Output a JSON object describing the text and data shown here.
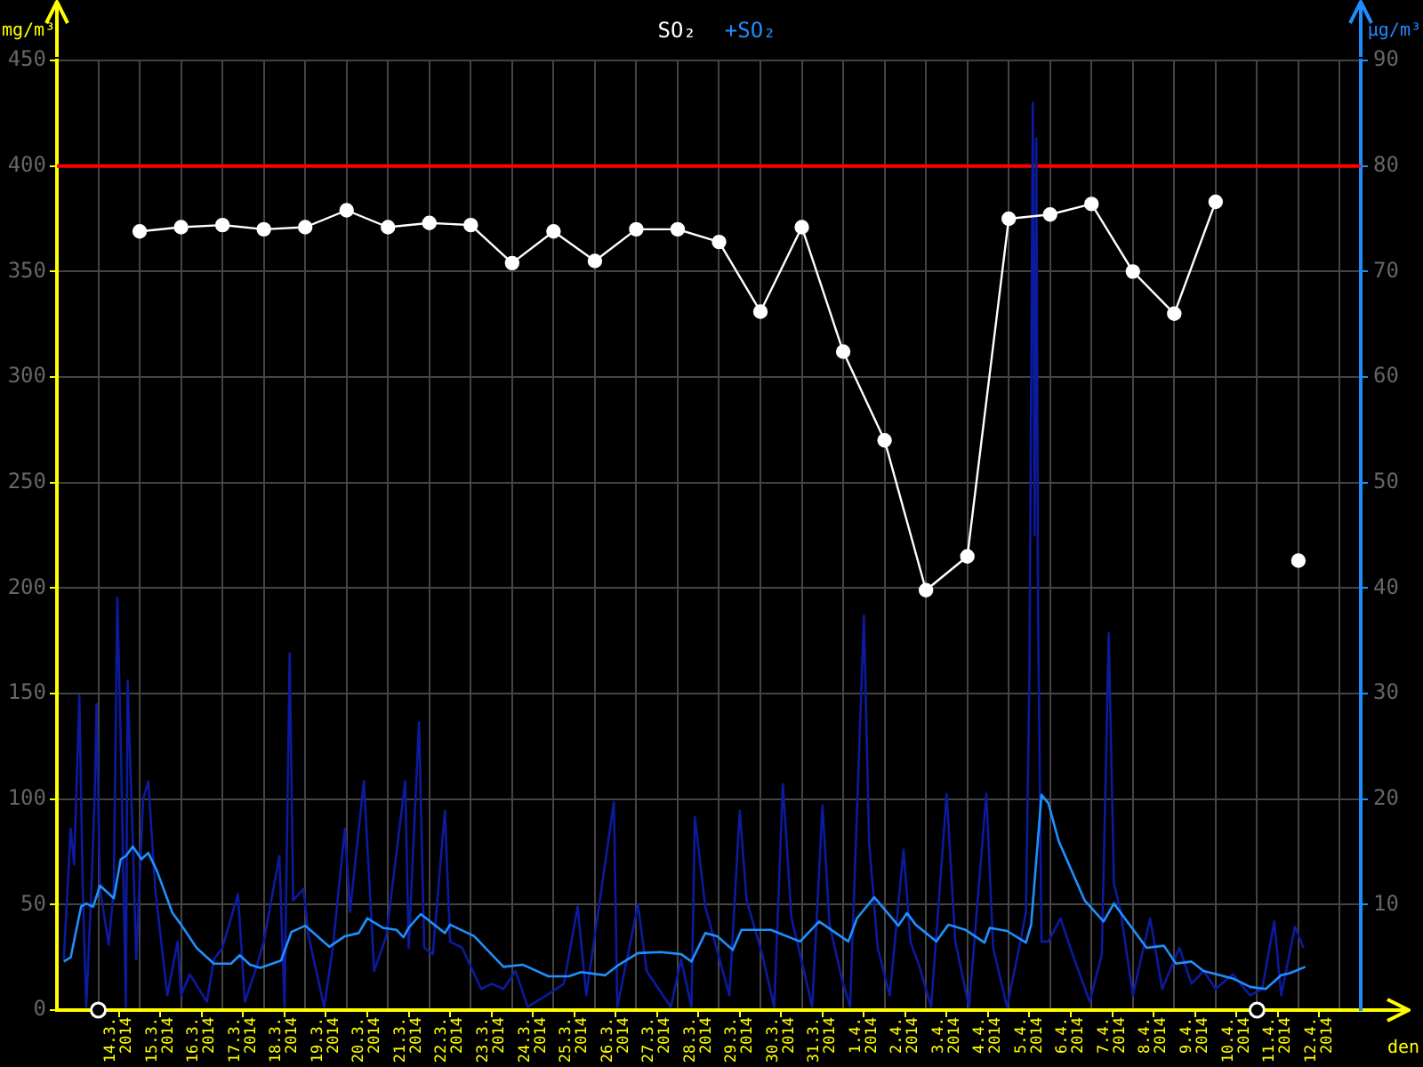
{
  "chart_data": {
    "type": "line",
    "xlabel": "den",
    "ylabel": "mg/m³",
    "y2label": "µg/m³",
    "legend": "top",
    "grid": true,
    "xlim": [
      "2014-03-13",
      "2014-04-14T16:00"
    ],
    "xticks": [
      {
        "value": "2014-03-14",
        "label": null
      },
      {
        "value": "2014-03-14T12:00",
        "label": "14.3. 2014"
      },
      {
        "value": "2014-03-15",
        "label": null
      },
      {
        "value": "2014-03-15T12:00",
        "label": "15.3. 2014"
      },
      {
        "value": "2014-03-16",
        "label": null
      },
      {
        "value": "2014-03-16T12:00",
        "label": "16.3. 2014"
      },
      {
        "value": "2014-03-17",
        "label": null
      },
      {
        "value": "2014-03-17T12:00",
        "label": "17.3. 2014"
      },
      {
        "value": "2014-03-18",
        "label": null
      },
      {
        "value": "2014-03-18T12:00",
        "label": "18.3. 2014"
      },
      {
        "value": "2014-03-19",
        "label": null
      },
      {
        "value": "2014-03-19T12:00",
        "label": "19.3. 2014"
      },
      {
        "value": "2014-03-20",
        "label": null
      },
      {
        "value": "2014-03-20T12:00",
        "label": "20.3. 2014"
      },
      {
        "value": "2014-03-21",
        "label": null
      },
      {
        "value": "2014-03-21T12:00",
        "label": "21.3. 2014"
      },
      {
        "value": "2014-03-22",
        "label": null
      },
      {
        "value": "2014-03-22T12:00",
        "label": "22.3. 2014"
      },
      {
        "value": "2014-03-23",
        "label": null
      },
      {
        "value": "2014-03-23T12:00",
        "label": "23.3. 2014"
      },
      {
        "value": "2014-03-24",
        "label": null
      },
      {
        "value": "2014-03-24T12:00",
        "label": "24.3. 2014"
      },
      {
        "value": "2014-03-25",
        "label": null
      },
      {
        "value": "2014-03-25T12:00",
        "label": "25.3. 2014"
      },
      {
        "value": "2014-03-26",
        "label": null
      },
      {
        "value": "2014-03-26T12:00",
        "label": "26.3. 2014"
      },
      {
        "value": "2014-03-27",
        "label": null
      },
      {
        "value": "2014-03-27T12:00",
        "label": "27.3. 2014"
      },
      {
        "value": "2014-03-28",
        "label": null
      },
      {
        "value": "2014-03-28T12:00",
        "label": "28.3. 2014"
      },
      {
        "value": "2014-03-29",
        "label": null
      },
      {
        "value": "2014-03-29T12:00",
        "label": "29.3. 2014"
      },
      {
        "value": "2014-03-30",
        "label": null
      },
      {
        "value": "2014-03-30T12:00",
        "label": "30.3. 2014"
      },
      {
        "value": "2014-03-31",
        "label": null
      },
      {
        "value": "2014-03-31T12:00",
        "label": "31.3. 2014"
      },
      {
        "value": "2014-04-01",
        "label": null
      },
      {
        "value": "2014-04-01T12:00",
        "label": "1.4. 2014"
      },
      {
        "value": "2014-04-02",
        "label": null
      },
      {
        "value": "2014-04-02T12:00",
        "label": "2.4. 2014"
      },
      {
        "value": "2014-04-03",
        "label": null
      },
      {
        "value": "2014-04-03T12:00",
        "label": "3.4. 2014"
      },
      {
        "value": "2014-04-04",
        "label": null
      },
      {
        "value": "2014-04-04T12:00",
        "label": "4.4. 2014"
      },
      {
        "value": "2014-04-05",
        "label": null
      },
      {
        "value": "2014-04-05T12:00",
        "label": "5.4. 2014"
      },
      {
        "value": "2014-04-06",
        "label": null
      },
      {
        "value": "2014-04-06T12:00",
        "label": "6.4. 2014"
      },
      {
        "value": "2014-04-07",
        "label": null
      },
      {
        "value": "2014-04-07T12:00",
        "label": "7.4. 2014"
      },
      {
        "value": "2014-04-08",
        "label": null
      },
      {
        "value": "2014-04-08T12:00",
        "label": "8.4. 2014"
      },
      {
        "value": "2014-04-09",
        "label": null
      },
      {
        "value": "2014-04-09T12:00",
        "label": "9.4. 2014"
      },
      {
        "value": "2014-04-10",
        "label": null
      },
      {
        "value": "2014-04-10T12:00",
        "label": "10.4. 2014"
      },
      {
        "value": "2014-04-11",
        "label": null
      },
      {
        "value": "2014-04-11T12:00",
        "label": "11.4. 2014"
      },
      {
        "value": "2014-04-12",
        "label": null
      },
      {
        "value": "2014-04-12T12:00",
        "label": "12.4. 2014"
      },
      {
        "value": "2014-04-13",
        "label": null
      }
    ],
    "ylim": [
      0,
      450
    ],
    "yticks": [
      0,
      50,
      100,
      150,
      200,
      250,
      300,
      350,
      400,
      450
    ],
    "y2lim": [
      0,
      90
    ],
    "y2ticks": [
      10,
      20,
      30,
      40,
      50,
      60,
      70,
      80,
      90
    ],
    "ref_lines": [
      {
        "axis": "y",
        "value": 400,
        "color": "#ff0000"
      }
    ],
    "series": [
      {
        "name": "SO₂",
        "color": "#ffffff",
        "marker": "circle",
        "x": [
          "2014-03-15",
          "2014-03-16",
          "2014-03-17",
          "2014-03-18",
          "2014-03-19",
          "2014-03-20",
          "2014-03-21",
          "2014-03-22",
          "2014-03-23",
          "2014-03-24",
          "2014-03-25",
          "2014-03-26",
          "2014-03-27",
          "2014-03-28",
          "2014-03-29",
          "2014-03-30",
          "2014-03-31",
          "2014-04-01",
          "2014-04-02",
          "2014-04-03",
          "2014-04-04",
          "2014-04-05",
          "2014-04-06",
          "2014-04-07",
          "2014-04-08",
          "2014-04-09",
          "2014-04-10",
          "2014-04-11",
          "2014-04-12"
        ],
        "values": [
          369,
          371,
          372,
          370,
          371,
          379,
          371,
          373,
          372,
          354,
          369,
          355,
          370,
          370,
          364,
          331,
          371,
          312,
          270,
          199,
          215,
          375,
          377,
          382,
          350,
          330,
          383,
          null,
          213
        ]
      },
      {
        "name": "+SO₂",
        "color": "#1e90ff",
        "axis": "y2",
        "x": [
          "2014-03-13T04:00",
          "2014-03-13T08:00",
          "2014-03-13T14:00",
          "2014-03-13T17:00",
          "2014-03-13T21:00",
          "2014-03-14T01:00",
          "2014-03-14T09:00",
          "2014-03-14T13:00",
          "2014-03-14T16:00",
          "2014-03-14T20:00",
          "2014-03-15T01:00",
          "2014-03-15T05:00",
          "2014-03-15T10:00",
          "2014-03-15T19:00",
          "2014-03-16T00:00",
          "2014-03-16T09:00",
          "2014-03-16T19:00",
          "2014-03-17T05:00",
          "2014-03-17T10:00",
          "2014-03-17T16:00",
          "2014-03-17T22:00",
          "2014-03-18T10:00",
          "2014-03-18T16:00",
          "2014-03-19T00:00",
          "2014-03-19T14:00",
          "2014-03-19T23:00",
          "2014-03-20T07:00",
          "2014-03-20T12:00",
          "2014-03-20T21:00",
          "2014-03-21T05:00",
          "2014-03-21T09:00",
          "2014-03-21T12:00",
          "2014-03-21T19:00",
          "2014-03-22T09:00",
          "2014-03-22T12:00",
          "2014-03-23T02:00",
          "2014-03-23T19:00",
          "2014-03-24T06:00",
          "2014-03-24T09:00",
          "2014-03-24T21:00",
          "2014-03-25T09:00",
          "2014-03-25T16:00",
          "2014-03-26T06:00",
          "2014-03-26T13:00",
          "2014-03-27T01:00",
          "2014-03-27T14:00",
          "2014-03-28T02:00",
          "2014-03-28T08:00",
          "2014-03-28T16:00",
          "2014-03-28T23:00",
          "2014-03-29T08:00",
          "2014-03-29T13:00",
          "2014-03-29T21:00",
          "2014-03-30T06:00",
          "2014-03-30T23:00",
          "2014-03-31T10:00",
          "2014-04-01T03:00",
          "2014-04-01T08:00",
          "2014-04-01T18:00",
          "2014-04-02T08:00",
          "2014-04-02T13:00",
          "2014-04-02T18:00",
          "2014-04-03T06:00",
          "2014-04-03T13:00",
          "2014-04-03T23:00",
          "2014-04-04T10:00",
          "2014-04-04T13:00",
          "2014-04-04T23:00",
          "2014-04-05T10:00",
          "2014-04-05T13:00",
          "2014-04-05T19:00",
          "2014-04-05T23:00",
          "2014-04-06T05:00",
          "2014-04-06T20:00",
          "2014-04-07T07:00",
          "2014-04-07T13:00",
          "2014-04-08T08:00",
          "2014-04-08T18:00",
          "2014-04-09T01:00",
          "2014-04-09T10:00",
          "2014-04-09T17:00",
          "2014-04-10T10:00",
          "2014-04-10T20:00",
          "2014-04-11T05:00",
          "2014-04-11T14:00",
          "2014-04-11T19:00",
          "2014-04-12T04:00"
        ],
        "values": [
          4.6,
          5.0,
          9.8,
          10.1,
          9.8,
          11.8,
          10.6,
          14.3,
          14.6,
          15.5,
          14.3,
          14.9,
          13.2,
          9.2,
          8.1,
          5.9,
          4.4,
          4.4,
          5.2,
          4.3,
          4.0,
          4.7,
          7.4,
          8.0,
          6.0,
          7.0,
          7.3,
          8.7,
          7.8,
          7.6,
          6.9,
          7.8,
          9.1,
          7.3,
          8.1,
          7.0,
          4.1,
          4.3,
          4.1,
          3.2,
          3.2,
          3.6,
          3.3,
          4.2,
          5.4,
          5.5,
          5.3,
          4.6,
          7.3,
          7.0,
          5.7,
          7.6,
          7.6,
          7.6,
          6.5,
          8.4,
          6.5,
          8.7,
          10.7,
          8.0,
          9.2,
          8.1,
          6.5,
          8.1,
          7.6,
          6.4,
          7.8,
          7.5,
          6.4,
          8.1,
          20.4,
          19.6,
          16.0,
          10.4,
          8.4,
          10.1,
          5.9,
          6.1,
          4.4,
          4.6,
          3.7,
          3.0,
          2.2,
          2.0,
          3.3,
          3.5,
          4.1
        ]
      },
      {
        "color": "#0c1a9e",
        "axis": "y2",
        "x": [
          "2014-03-13T04:00",
          "2014-03-13T08:00",
          "2014-03-13T10:00",
          "2014-03-13T13:00",
          "2014-03-13T15:00",
          "2014-03-13T17:00",
          "2014-03-13T20:00",
          "2014-03-13T22:00",
          "2014-03-13T23:00",
          "2014-03-14T01:00",
          "2014-03-14T06:00",
          "2014-03-14T09:00",
          "2014-03-14T11:00",
          "2014-03-14T13:00",
          "2014-03-14T16:00",
          "2014-03-14T17:00",
          "2014-03-14T20:00",
          "2014-03-14T22:00",
          "2014-03-15T02:00",
          "2014-03-15T05:00",
          "2014-03-15T09:00",
          "2014-03-15T16:00",
          "2014-03-15T22:00",
          "2014-03-16T00:00",
          "2014-03-16T05:00",
          "2014-03-16T15:00",
          "2014-03-16T19:00",
          "2014-03-17T00:00",
          "2014-03-17T09:00",
          "2014-03-17T13:00",
          "2014-03-17T19:00",
          "2014-03-18T00:00",
          "2014-03-18T09:00",
          "2014-03-18T12:00",
          "2014-03-18T15:00",
          "2014-03-18T17:00",
          "2014-03-18T23:00",
          "2014-03-19T02:00",
          "2014-03-19T11:00",
          "2014-03-19T16:00",
          "2014-03-19T23:00",
          "2014-03-20T02:00",
          "2014-03-20T10:00",
          "2014-03-20T16:00",
          "2014-03-20T23:00",
          "2014-03-21T10:00",
          "2014-03-21T12:00",
          "2014-03-21T18:00",
          "2014-03-21T21:00",
          "2014-03-22T02:00",
          "2014-03-22T09:00",
          "2014-03-22T12:00",
          "2014-03-22T19:00",
          "2014-03-23T06:00",
          "2014-03-23T12:00",
          "2014-03-23T19:00",
          "2014-03-24T02:00",
          "2014-03-24T09:00",
          "2014-03-24T20:00",
          "2014-03-25T06:00",
          "2014-03-25T14:00",
          "2014-03-25T19:00",
          "2014-03-26T11:00",
          "2014-03-26T13:00",
          "2014-03-27T01:00",
          "2014-03-27T06:00",
          "2014-03-27T20:00",
          "2014-03-28T02:00",
          "2014-03-28T08:00",
          "2014-03-28T10:00",
          "2014-03-28T16:00",
          "2014-03-29T06:00",
          "2014-03-29T12:00",
          "2014-03-29T16:00",
          "2014-03-30T01:00",
          "2014-03-30T08:00",
          "2014-03-30T13:00",
          "2014-03-30T18:00",
          "2014-03-30T23:00",
          "2014-03-31T06:00",
          "2014-03-31T12:00",
          "2014-03-31T16:00",
          "2014-03-31T23:00",
          "2014-04-01T04:00",
          "2014-04-01T12:00",
          "2014-04-01T15:00",
          "2014-04-01T20:00",
          "2014-04-02T03:00",
          "2014-04-02T11:00",
          "2014-04-02T15:00",
          "2014-04-02T20:00",
          "2014-04-03T03:00",
          "2014-04-03T12:00",
          "2014-04-03T17:00",
          "2014-04-04T01:00",
          "2014-04-04T11:00",
          "2014-04-04T15:00",
          "2014-04-04T23:00",
          "2014-04-05T06:00",
          "2014-04-05T10:00",
          "2014-04-05T12:00",
          "2014-04-05T14:00",
          "2014-04-05T15:00",
          "2014-04-05T16:00",
          "2014-04-05T17:00",
          "2014-04-05T19:00",
          "2014-04-05T23:00",
          "2014-04-06T06:00",
          "2014-04-06T13:00",
          "2014-04-06T23:00",
          "2014-04-07T06:00",
          "2014-04-07T10:00",
          "2014-04-07T13:00",
          "2014-04-07T17:00",
          "2014-04-08T00:00",
          "2014-04-08T10:00",
          "2014-04-08T17:00",
          "2014-04-09T03:00",
          "2014-04-09T10:00",
          "2014-04-09T17:00",
          "2014-04-10T00:00",
          "2014-04-10T10:00",
          "2014-04-10T20:00",
          "2014-04-11T03:00",
          "2014-04-11T10:00",
          "2014-04-11T14:00",
          "2014-04-11T22:00",
          "2014-04-12T03:00"
        ],
        "values": [
          4.8,
          17.2,
          13.8,
          29.8,
          11.5,
          0.3,
          11.5,
          20.8,
          29.0,
          11.5,
          6.2,
          11.5,
          39.1,
          25.6,
          0.3,
          31.2,
          16.0,
          4.8,
          20.0,
          21.7,
          11.5,
          1.4,
          6.5,
          1.4,
          3.4,
          0.8,
          4.8,
          5.9,
          11.0,
          0.8,
          3.7,
          6.5,
          14.6,
          0.3,
          33.8,
          10.4,
          11.5,
          7.0,
          0.3,
          5.9,
          17.2,
          9.3,
          21.7,
          3.7,
          7.0,
          21.7,
          5.9,
          27.3,
          5.9,
          5.3,
          18.9,
          6.5,
          5.9,
          2.0,
          2.5,
          2.0,
          3.7,
          0.3,
          1.4,
          2.5,
          9.8,
          1.4,
          19.7,
          0.3,
          10.0,
          3.7,
          0.3,
          4.8,
          0.3,
          18.3,
          9.8,
          1.4,
          18.9,
          10.4,
          5.3,
          0.3,
          21.4,
          8.7,
          5.3,
          0.3,
          19.4,
          8.2,
          3.1,
          0.3,
          37.4,
          16.0,
          5.9,
          1.4,
          15.2,
          6.5,
          4.2,
          0.3,
          20.5,
          6.5,
          0.3,
          20.5,
          5.9,
          0.3,
          5.9,
          9.3,
          31.7,
          86.0,
          45.0,
          82.6,
          38.0,
          6.5,
          6.5,
          8.7,
          5.3,
          0.8,
          5.3,
          35.7,
          12.0,
          9.3,
          1.4,
          8.7,
          2.0,
          5.9,
          2.5,
          3.7,
          2.0,
          3.4,
          1.4,
          2.0,
          8.4,
          1.4,
          7.9,
          5.9
        ]
      },
      {
        "type": "scatter",
        "color": "#ffffff",
        "marker": "circle",
        "x": [
          "2014-03-14",
          "2014-04-11"
        ],
        "values": [
          0,
          0
        ]
      }
    ]
  }
}
